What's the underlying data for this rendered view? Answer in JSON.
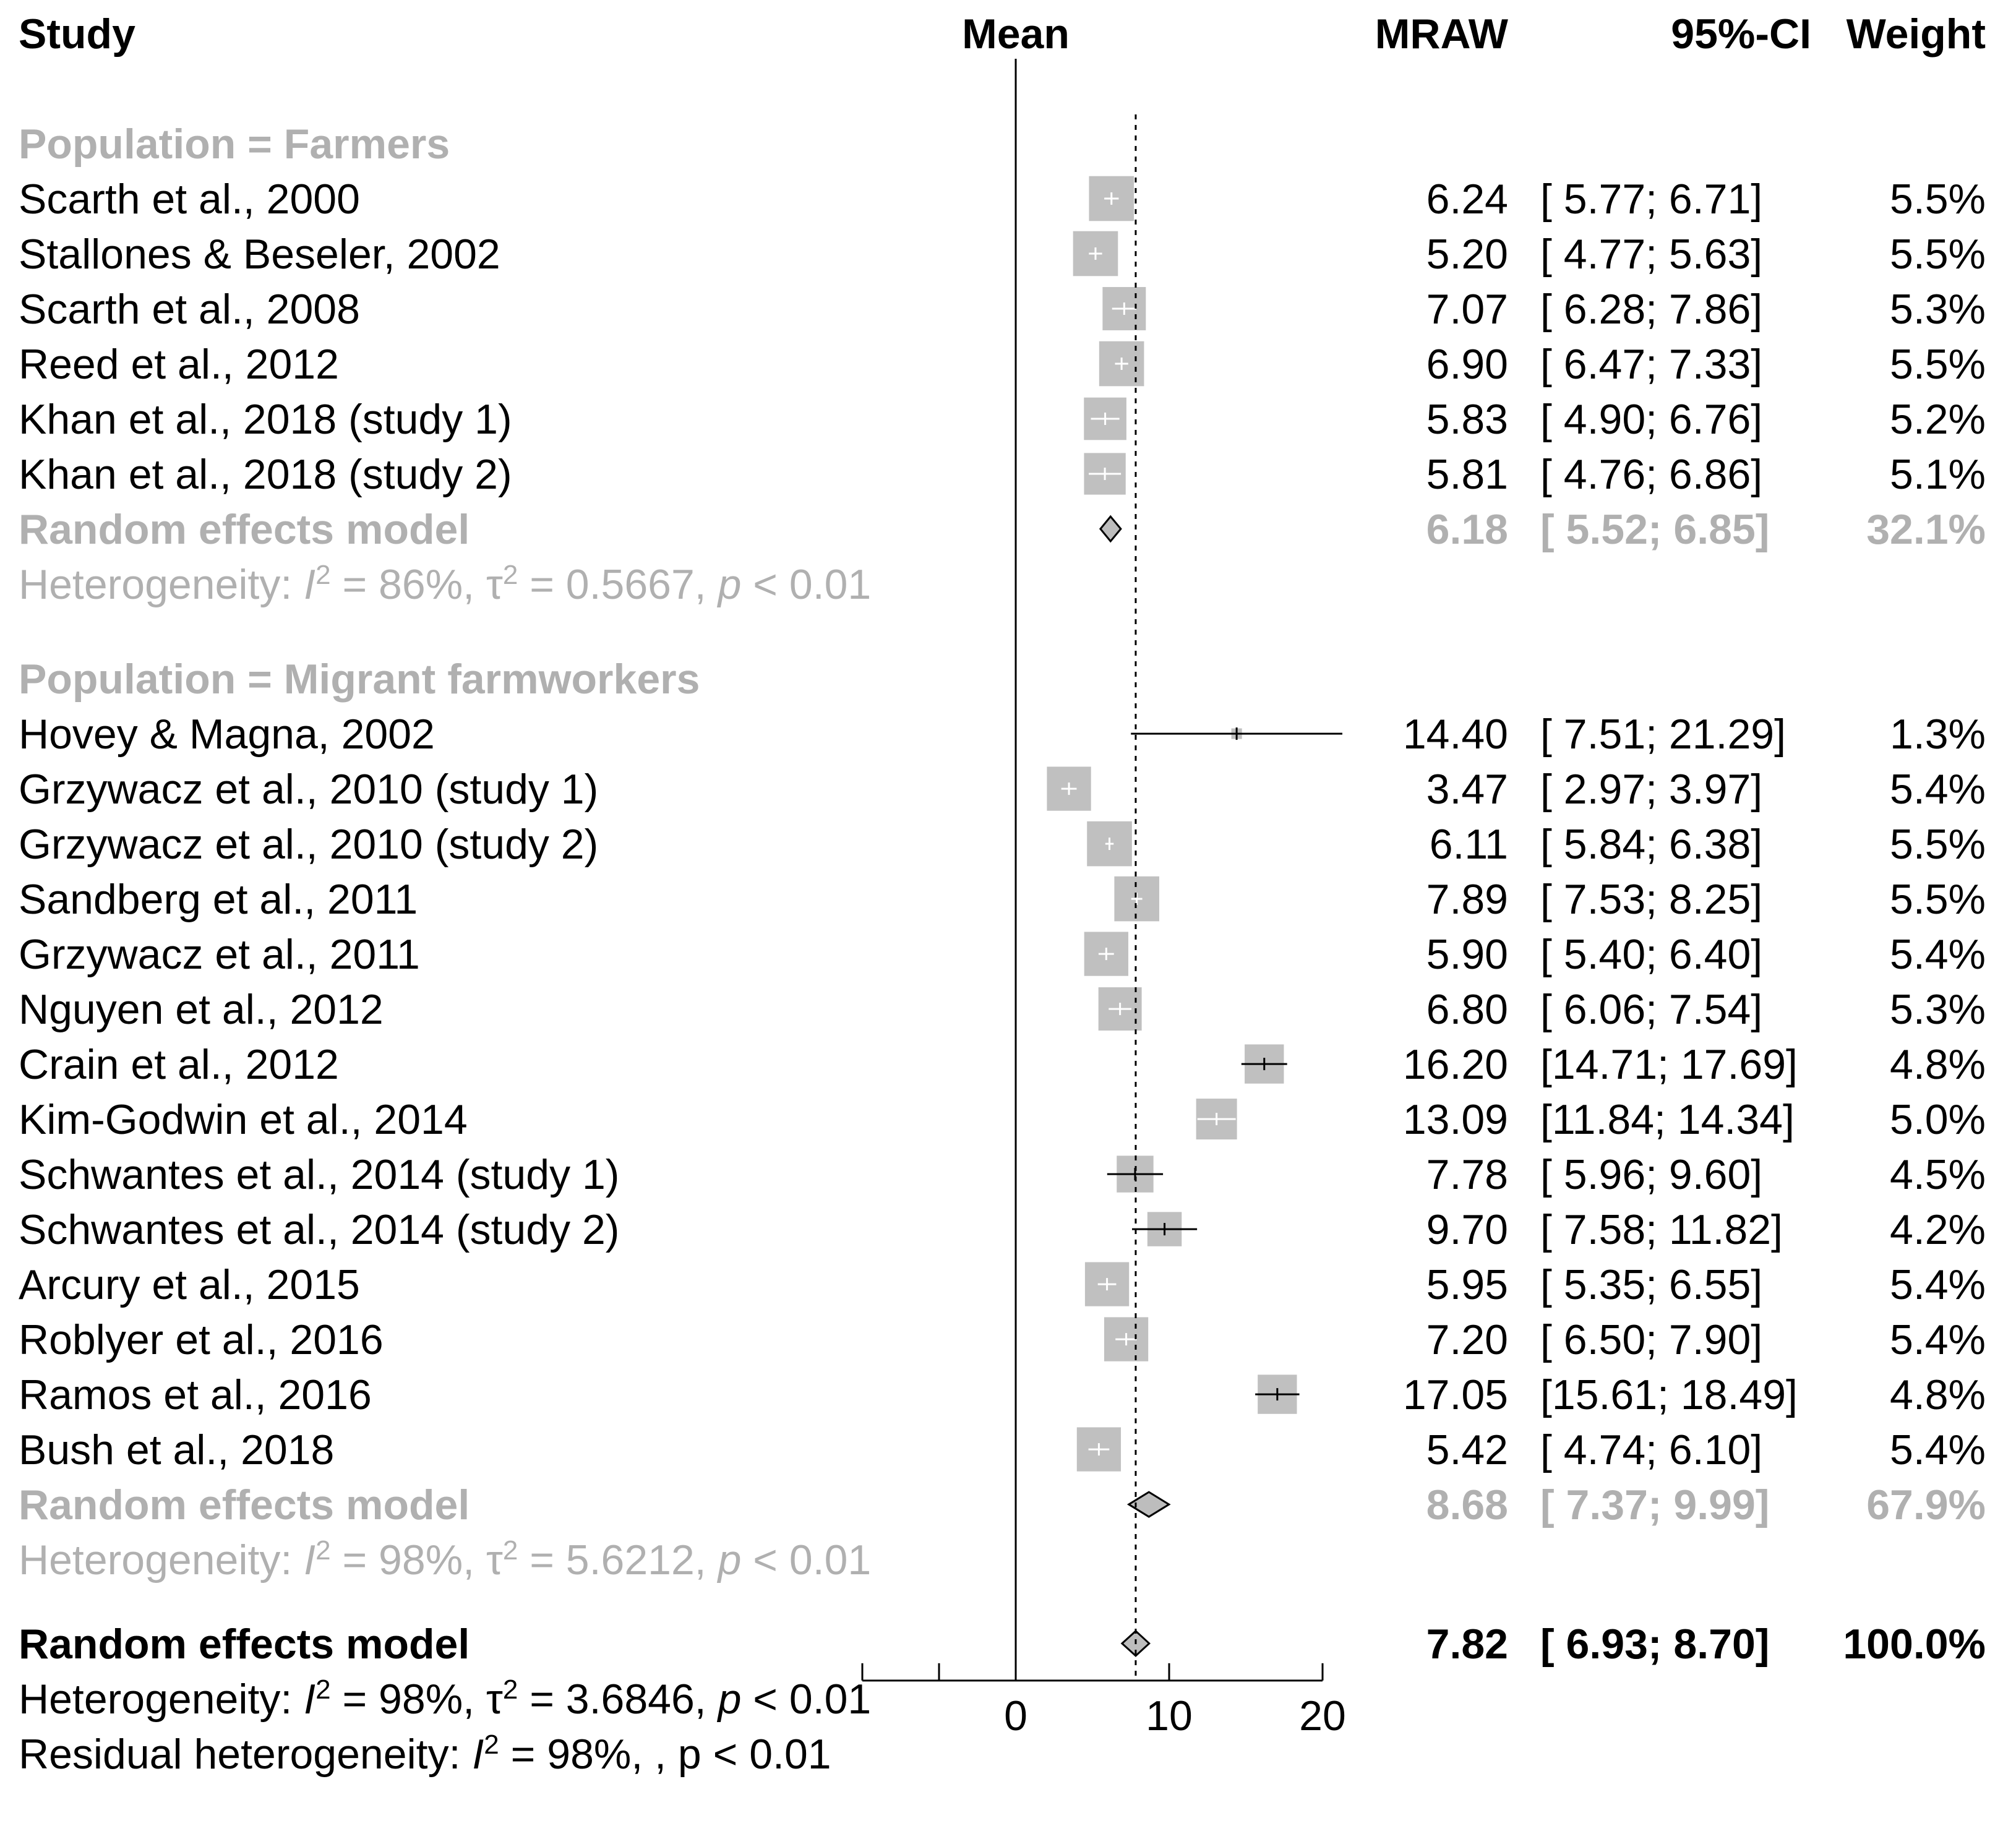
{
  "chart_data": {
    "type": "forest",
    "title": "",
    "headers": {
      "study": "Study",
      "mean": "Mean",
      "mraw": "MRAW",
      "ci": "95%-CI",
      "weight": "Weight"
    },
    "x_axis": {
      "xlim": [
        -10,
        20
      ],
      "ticks": [
        0,
        10,
        20
      ],
      "tick_labels": [
        "0",
        "10",
        "20"
      ],
      "reference_line": 0,
      "overall_line": 7.82
    },
    "subgroups": [
      {
        "label": "Population = Farmers",
        "studies": [
          {
            "name": "Scarth et al., 2000",
            "mean": 6.24,
            "lower": 5.77,
            "upper": 6.71,
            "mraw": "6.24",
            "ci": "[ 5.77;  6.71]",
            "weight": "5.5%",
            "w": 5.5
          },
          {
            "name": "Stallones & Beseler, 2002",
            "mean": 5.2,
            "lower": 4.77,
            "upper": 5.63,
            "mraw": "5.20",
            "ci": "[ 4.77;  5.63]",
            "weight": "5.5%",
            "w": 5.5
          },
          {
            "name": "Scarth et al., 2008",
            "mean": 7.07,
            "lower": 6.28,
            "upper": 7.86,
            "mraw": "7.07",
            "ci": "[ 6.28;  7.86]",
            "weight": "5.3%",
            "w": 5.3
          },
          {
            "name": "Reed et al., 2012",
            "mean": 6.9,
            "lower": 6.47,
            "upper": 7.33,
            "mraw": "6.90",
            "ci": "[ 6.47;  7.33]",
            "weight": "5.5%",
            "w": 5.5
          },
          {
            "name": "Khan et al., 2018 (study 1)",
            "mean": 5.83,
            "lower": 4.9,
            "upper": 6.76,
            "mraw": "5.83",
            "ci": "[ 4.90;  6.76]",
            "weight": "5.2%",
            "w": 5.2
          },
          {
            "name": "Khan et al., 2018 (study 2)",
            "mean": 5.81,
            "lower": 4.76,
            "upper": 6.86,
            "mraw": "5.81",
            "ci": "[ 4.76;  6.86]",
            "weight": "5.1%",
            "w": 5.1
          }
        ],
        "model": {
          "label": "Random effects model",
          "mean": 6.18,
          "lower": 5.52,
          "upper": 6.85,
          "mraw": "6.18",
          "ci": "[ 5.52;  6.85]",
          "weight": "32.1%"
        },
        "heterogeneity": {
          "prefix": "Heterogeneity: ",
          "i2_sym": "I",
          "i2_sup": "2",
          "i2_val": " = 86%, ",
          "tau_sym": "τ",
          "tau_sup": "2",
          "tau_val": " = 0.5667, ",
          "p_sym": "p",
          "p_val": " < 0.01"
        }
      },
      {
        "label": "Population = Migrant farmworkers",
        "studies": [
          {
            "name": "Hovey & Magna, 2002",
            "mean": 14.4,
            "lower": 7.51,
            "upper": 21.29,
            "mraw": "14.40",
            "ci": "[ 7.51; 21.29]",
            "weight": "1.3%",
            "w": 1.3
          },
          {
            "name": "Grzywacz et al., 2010 (study 1)",
            "mean": 3.47,
            "lower": 2.97,
            "upper": 3.97,
            "mraw": "3.47",
            "ci": "[ 2.97;  3.97]",
            "weight": "5.4%",
            "w": 5.4
          },
          {
            "name": "Grzywacz et al., 2010 (study 2)",
            "mean": 6.11,
            "lower": 5.84,
            "upper": 6.38,
            "mraw": "6.11",
            "ci": "[ 5.84;  6.38]",
            "weight": "5.5%",
            "w": 5.5
          },
          {
            "name": "Sandberg et al., 2011",
            "mean": 7.89,
            "lower": 7.53,
            "upper": 8.25,
            "mraw": "7.89",
            "ci": "[ 7.53;  8.25]",
            "weight": "5.5%",
            "w": 5.5
          },
          {
            "name": "Grzywacz et al., 2011",
            "mean": 5.9,
            "lower": 5.4,
            "upper": 6.4,
            "mraw": "5.90",
            "ci": "[ 5.40;  6.40]",
            "weight": "5.4%",
            "w": 5.4
          },
          {
            "name": "Nguyen et al., 2012",
            "mean": 6.8,
            "lower": 6.06,
            "upper": 7.54,
            "mraw": "6.80",
            "ci": "[ 6.06;  7.54]",
            "weight": "5.3%",
            "w": 5.3
          },
          {
            "name": "Crain et al., 2012",
            "mean": 16.2,
            "lower": 14.71,
            "upper": 17.69,
            "mraw": "16.20",
            "ci": "[14.71; 17.69]",
            "weight": "4.8%",
            "w": 4.8
          },
          {
            "name": "Kim-Godwin et al., 2014",
            "mean": 13.09,
            "lower": 11.84,
            "upper": 14.34,
            "mraw": "13.09",
            "ci": "[11.84; 14.34]",
            "weight": "5.0%",
            "w": 5.0
          },
          {
            "name": "Schwantes et al., 2014 (study 1)",
            "mean": 7.78,
            "lower": 5.96,
            "upper": 9.6,
            "mraw": "7.78",
            "ci": "[ 5.96;  9.60]",
            "weight": "4.5%",
            "w": 4.5
          },
          {
            "name": "Schwantes et al., 2014 (study 2)",
            "mean": 9.7,
            "lower": 7.58,
            "upper": 11.82,
            "mraw": "9.70",
            "ci": "[ 7.58; 11.82]",
            "weight": "4.2%",
            "w": 4.2
          },
          {
            "name": "Arcury et al., 2015",
            "mean": 5.95,
            "lower": 5.35,
            "upper": 6.55,
            "mraw": "5.95",
            "ci": "[ 5.35;  6.55]",
            "weight": "5.4%",
            "w": 5.4
          },
          {
            "name": "Roblyer et al., 2016",
            "mean": 7.2,
            "lower": 6.5,
            "upper": 7.9,
            "mraw": "7.20",
            "ci": "[ 6.50;  7.90]",
            "weight": "5.4%",
            "w": 5.4
          },
          {
            "name": "Ramos et al., 2016",
            "mean": 17.05,
            "lower": 15.61,
            "upper": 18.49,
            "mraw": "17.05",
            "ci": "[15.61; 18.49]",
            "weight": "4.8%",
            "w": 4.8
          },
          {
            "name": "Bush et al., 2018",
            "mean": 5.42,
            "lower": 4.74,
            "upper": 6.1,
            "mraw": "5.42",
            "ci": "[ 4.74;  6.10]",
            "weight": "5.4%",
            "w": 5.4
          }
        ],
        "model": {
          "label": "Random effects model",
          "mean": 8.68,
          "lower": 7.37,
          "upper": 9.99,
          "mraw": "8.68",
          "ci": "[ 7.37;  9.99]",
          "weight": "67.9%"
        },
        "heterogeneity": {
          "prefix": "Heterogeneity: ",
          "i2_sym": "I",
          "i2_sup": "2",
          "i2_val": " = 98%, ",
          "tau_sym": "τ",
          "tau_sup": "2",
          "tau_val": " = 5.6212, ",
          "p_sym": "p",
          "p_val": " < 0.01"
        }
      }
    ],
    "overall": {
      "label": "Random effects model",
      "mean": 7.82,
      "lower": 6.93,
      "upper": 8.7,
      "mraw": "7.82",
      "ci": "[ 6.93;  8.70]",
      "weight": "100.0%",
      "heterogeneity": {
        "prefix": "Heterogeneity: ",
        "i2_sym": "I",
        "i2_sup": "2",
        "i2_val": " = 98%, ",
        "tau_sym": "τ",
        "tau_sup": "2",
        "tau_val": " = 3.6846, ",
        "p_sym": "p",
        "p_val": " < 0.01"
      },
      "residual": {
        "prefix": "Residual heterogeneity: ",
        "i2_sym": "I",
        "i2_sup": "2",
        "i2_val": " = 98%, , p < 0.01"
      }
    },
    "colors": {
      "text": "#000000",
      "subgroup_text": "#b0b0b0",
      "square": "#c0c0c0",
      "diamond": "#bdbdbd",
      "line": "#000000"
    }
  }
}
